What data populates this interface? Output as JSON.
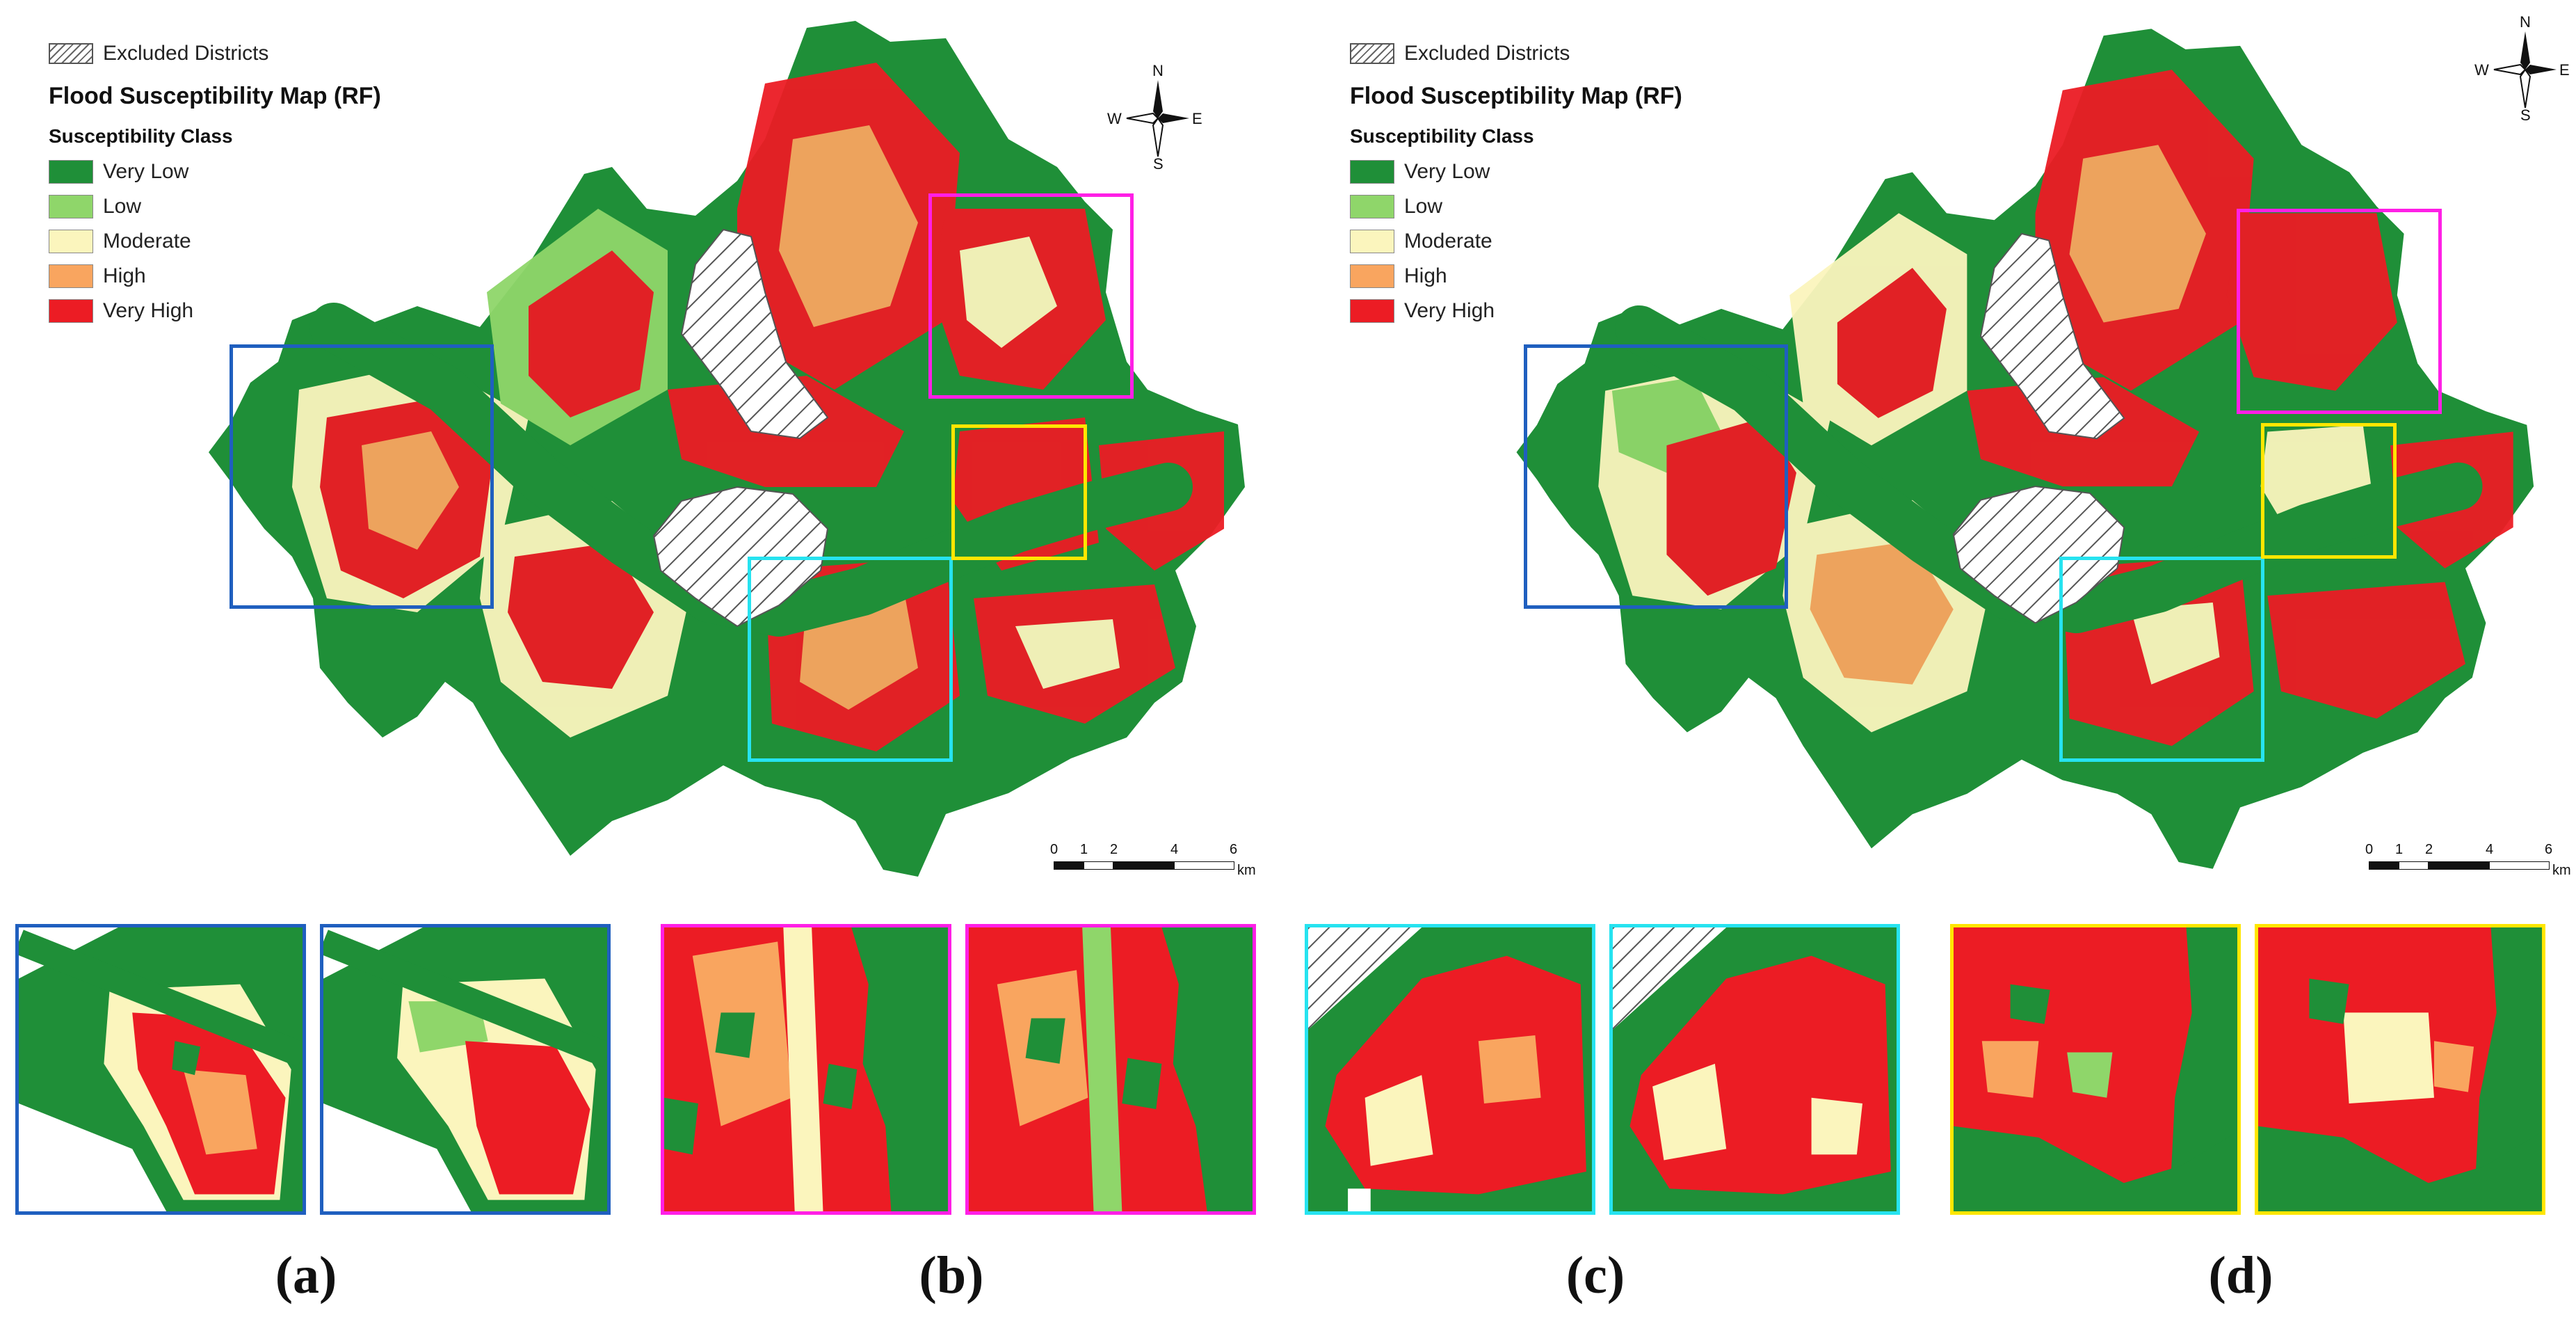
{
  "legend": {
    "excluded_label": "Excluded Districts",
    "title": "Flood Susceptibility Map (RF)",
    "subtitle": "Susceptibility Class",
    "classes": [
      {
        "label": "Very Low",
        "color": "#1f8f38"
      },
      {
        "label": "Low",
        "color": "#8fd66a"
      },
      {
        "label": "Moderate",
        "color": "#fbf5bd"
      },
      {
        "label": "High",
        "color": "#f9a55f"
      },
      {
        "label": "Very High",
        "color": "#ec1c24"
      }
    ]
  },
  "compass": {
    "n": "N",
    "s": "S",
    "e": "E",
    "w": "W"
  },
  "scale": {
    "ticks": [
      "0",
      "1",
      "2",
      "4",
      "6"
    ],
    "unit": "km"
  },
  "zoom_colors": {
    "a": "#1f5fbf",
    "b": "#ff1fe6",
    "c": "#26e3f0",
    "d": "#ffe600"
  },
  "captions": {
    "a": "(a)",
    "b": "(b)",
    "c": "(c)",
    "d": "(d)"
  }
}
